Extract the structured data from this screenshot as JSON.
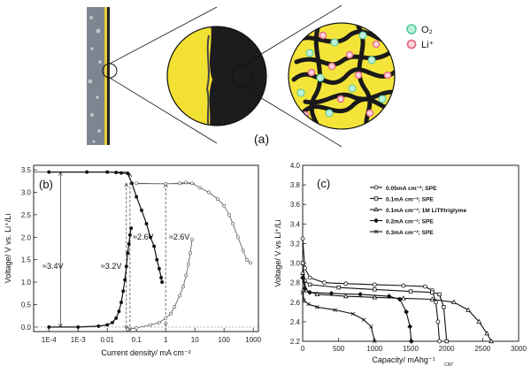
{
  "schematic": {
    "panel_label": "(a)",
    "legend": [
      {
        "label": "O₂",
        "color": "#4ec99a"
      },
      {
        "label": "Li⁺",
        "color": "#e8708a"
      }
    ]
  },
  "chart_data": [
    {
      "type": "line",
      "panel_label": "(b)",
      "xscale": "log",
      "xlabel": "Current density/ mA cm⁻²",
      "ylabel": "Voltage/ V vs. Li⁺/Li",
      "xlim": [
        3e-05,
        1500
      ],
      "ylim": [
        -0.1,
        3.6
      ],
      "x_ticks": [
        0.0001,
        0.001,
        0.01,
        0.1,
        1,
        10,
        100,
        1000
      ],
      "x_tick_labels": [
        "1E-4",
        "1E-3",
        "0.01",
        "0.1",
        "1",
        "10",
        "100",
        "1000"
      ],
      "y_ticks": [
        0.0,
        0.5,
        1.0,
        1.5,
        2.0,
        2.5,
        3.0,
        3.5
      ],
      "y_tick_labels": [
        "0.0",
        "0.5",
        "1.0",
        "1.5",
        "2.0",
        "2.5",
        "3.0",
        "3.5"
      ],
      "annotations": [
        "≈3.4V",
        "≈3.2V",
        "≈2.6V",
        "≈2.6V"
      ],
      "series": [
        {
          "style": "discharge-solid",
          "points": [
            [
              0.0001,
              3.45
            ],
            [
              0.002,
              3.45
            ],
            [
              0.01,
              3.45
            ],
            [
              0.02,
              3.44
            ],
            [
              0.03,
              3.43
            ],
            [
              0.05,
              3.42
            ],
            [
              0.07,
              3.2
            ],
            [
              0.1,
              2.9
            ],
            [
              0.15,
              2.6
            ],
            [
              0.22,
              2.3
            ],
            [
              0.3,
              2.0
            ],
            [
              0.4,
              1.8
            ],
            [
              0.5,
              1.5
            ],
            [
              0.6,
              1.3
            ],
            [
              0.7,
              1.1
            ],
            [
              0.75,
              1.0
            ]
          ]
        },
        {
          "style": "charge-solid",
          "points": [
            [
              0.0001,
              0.0
            ],
            [
              0.001,
              0.0
            ],
            [
              0.005,
              0.02
            ],
            [
              0.01,
              0.05
            ],
            [
              0.015,
              0.1
            ],
            [
              0.02,
              0.2
            ],
            [
              0.025,
              0.35
            ],
            [
              0.03,
              0.55
            ],
            [
              0.035,
              0.8
            ],
            [
              0.04,
              1.05
            ],
            [
              0.045,
              1.35
            ],
            [
              0.05,
              1.65
            ],
            [
              0.055,
              1.85
            ],
            [
              0.06,
              2.05
            ],
            [
              0.065,
              2.2
            ]
          ]
        },
        {
          "style": "discharge-open",
          "points": [
            [
              0.1,
              3.2
            ],
            [
              1,
              3.19
            ],
            [
              3,
              3.2
            ],
            [
              5,
              3.22
            ],
            [
              8,
              3.2
            ],
            [
              15,
              3.1
            ],
            [
              30,
              3.0
            ],
            [
              60,
              2.85
            ],
            [
              100,
              2.7
            ],
            [
              150,
              2.5
            ],
            [
              200,
              2.3
            ],
            [
              300,
              2.0
            ],
            [
              450,
              1.7
            ],
            [
              600,
              1.5
            ],
            [
              800,
              1.43
            ]
          ]
        },
        {
          "style": "charge-open",
          "points": [
            [
              0.05,
              -0.05
            ],
            [
              0.1,
              -0.02
            ],
            [
              0.3,
              0.05
            ],
            [
              0.6,
              0.1
            ],
            [
              1,
              0.2
            ],
            [
              1.5,
              0.3
            ],
            [
              2,
              0.45
            ],
            [
              3,
              0.7
            ],
            [
              4,
              0.9
            ],
            [
              5,
              1.15
            ],
            [
              6,
              1.4
            ],
            [
              7,
              1.65
            ],
            [
              8,
              1.95
            ]
          ]
        }
      ]
    },
    {
      "type": "line",
      "panel_label": "(c)",
      "xlabel": "Capacity/ mAhg⁻¹",
      "xlabel_sub": "CNT",
      "ylabel": "Voltage/ V vs Li⁺/Li",
      "xlim": [
        0,
        3000
      ],
      "ylim": [
        2.2,
        4.0
      ],
      "x_ticks": [
        0,
        500,
        1000,
        1500,
        2000,
        2500,
        3000
      ],
      "x_tick_labels": [
        "0",
        "500",
        "1000",
        "1500",
        "2000",
        "2500",
        "3000"
      ],
      "y_ticks": [
        2.2,
        2.4,
        2.6,
        2.8,
        3.0,
        3.2,
        3.4,
        3.6,
        3.8,
        4.0
      ],
      "y_tick_labels": [
        "2.2",
        "2.4",
        "2.6",
        "2.8",
        "3.0",
        "3.2",
        "3.4",
        "3.6",
        "3.8",
        "4.0"
      ],
      "legend_position": "top-right",
      "series": [
        {
          "name": "0.05mA cm⁻²; SPE",
          "marker": "circle",
          "points": [
            [
              0,
              3.25
            ],
            [
              30,
              2.95
            ],
            [
              100,
              2.85
            ],
            [
              300,
              2.8
            ],
            [
              600,
              2.79
            ],
            [
              1000,
              2.78
            ],
            [
              1400,
              2.77
            ],
            [
              1700,
              2.76
            ],
            [
              1800,
              2.72
            ],
            [
              1850,
              2.6
            ],
            [
              1880,
              2.4
            ],
            [
              1900,
              2.2
            ]
          ]
        },
        {
          "name": "0.1mA cm⁻²; SPE",
          "marker": "square",
          "points": [
            [
              0,
              3.0
            ],
            [
              30,
              2.82
            ],
            [
              100,
              2.78
            ],
            [
              500,
              2.75
            ],
            [
              1000,
              2.73
            ],
            [
              1500,
              2.71
            ],
            [
              1800,
              2.7
            ],
            [
              1900,
              2.68
            ],
            [
              1960,
              2.55
            ],
            [
              2000,
              2.2
            ]
          ]
        },
        {
          "name": "0.1mA cm⁻²; 1M LiTf/triglyme",
          "marker": "triangle",
          "points": [
            [
              0,
              2.9
            ],
            [
              50,
              2.72
            ],
            [
              200,
              2.68
            ],
            [
              600,
              2.66
            ],
            [
              1000,
              2.65
            ],
            [
              1400,
              2.64
            ],
            [
              1800,
              2.63
            ],
            [
              2100,
              2.6
            ],
            [
              2300,
              2.52
            ],
            [
              2450,
              2.4
            ],
            [
              2560,
              2.28
            ],
            [
              2620,
              2.2
            ]
          ]
        },
        {
          "name": "0.2mA cm⁻²; SPE",
          "marker": "diamond",
          "points": [
            [
              0,
              2.85
            ],
            [
              30,
              2.74
            ],
            [
              100,
              2.7
            ],
            [
              400,
              2.69
            ],
            [
              800,
              2.68
            ],
            [
              1200,
              2.66
            ],
            [
              1350,
              2.63
            ],
            [
              1440,
              2.5
            ],
            [
              1490,
              2.35
            ],
            [
              1510,
              2.2
            ]
          ]
        },
        {
          "name": "0.3mA cm⁻²; SPE",
          "marker": "cross",
          "points": [
            [
              0,
              2.7
            ],
            [
              20,
              2.62
            ],
            [
              80,
              2.58
            ],
            [
              200,
              2.55
            ],
            [
              450,
              2.52
            ],
            [
              700,
              2.48
            ],
            [
              850,
              2.42
            ],
            [
              950,
              2.35
            ],
            [
              1000,
              2.2
            ]
          ]
        }
      ]
    }
  ]
}
